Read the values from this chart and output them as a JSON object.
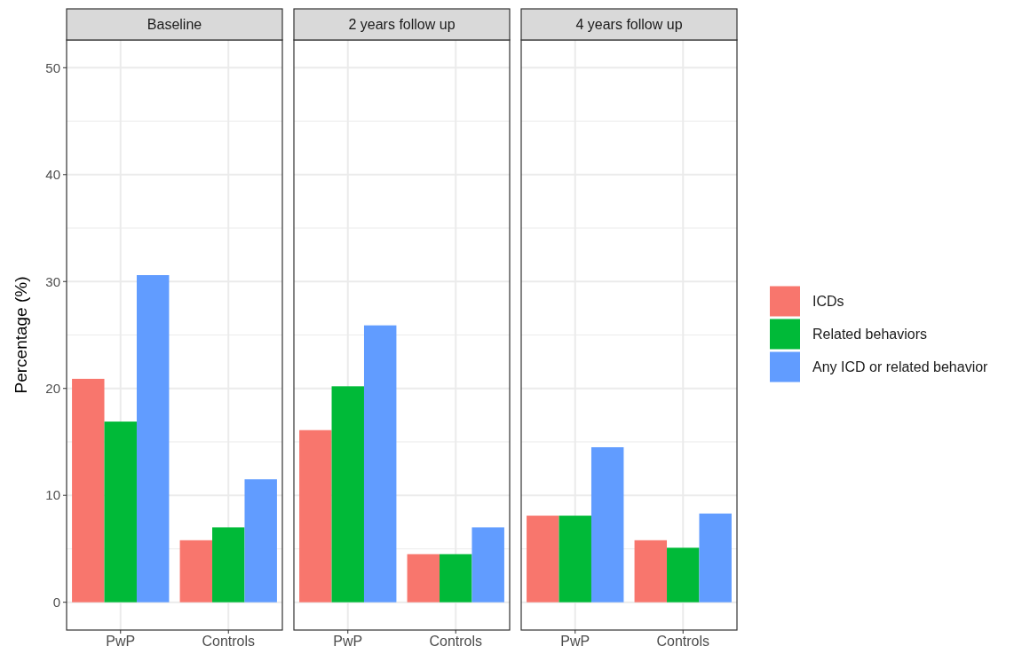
{
  "chart_data": [
    {
      "type": "bar",
      "title": "Baseline",
      "ylabel": "Percentage (%)",
      "categories": [
        "PwP",
        "Controls"
      ],
      "ylim": [
        -2.6,
        52.6
      ],
      "yticks": [
        0,
        10,
        20,
        30,
        40,
        50
      ],
      "grid": true,
      "series": [
        {
          "color": "#f8766d",
          "values": [
            20.9,
            5.8
          ]
        },
        {
          "color": "#00ba38",
          "values": [
            16.9,
            7.0
          ]
        },
        {
          "color": "#619cff",
          "values": [
            30.6,
            11.5
          ]
        }
      ]
    },
    {
      "type": "bar",
      "title": "2 years follow up",
      "categories": [
        "PwP",
        "Controls"
      ],
      "ylim": [
        -2.6,
        52.6
      ],
      "yticks": [
        0,
        10,
        20,
        30,
        40,
        50
      ],
      "tick_labels": "x",
      "grid": true,
      "series": [
        {
          "color": "#f8766d",
          "values": [
            16.1,
            4.5
          ]
        },
        {
          "color": "#00ba38",
          "values": [
            20.2,
            4.5
          ]
        },
        {
          "color": "#619cff",
          "values": [
            25.9,
            7.0
          ]
        }
      ]
    },
    {
      "type": "bar",
      "title": "4 years follow up",
      "categories": [
        "PwP",
        "Controls"
      ],
      "ylim": [
        -2.6,
        52.6
      ],
      "yticks": [
        0,
        10,
        20,
        30,
        40,
        50
      ],
      "tick_labels": "x",
      "grid": true,
      "legend": "right",
      "series": [
        {
          "name": "ICDs",
          "color": "#f8766d",
          "values": [
            8.1,
            5.8
          ]
        },
        {
          "name": "Related behaviors",
          "color": "#00ba38",
          "values": [
            8.1,
            5.1
          ]
        },
        {
          "name": "Any ICD or related behavior",
          "color": "#619cff",
          "values": [
            14.5,
            8.3
          ]
        }
      ]
    }
  ]
}
